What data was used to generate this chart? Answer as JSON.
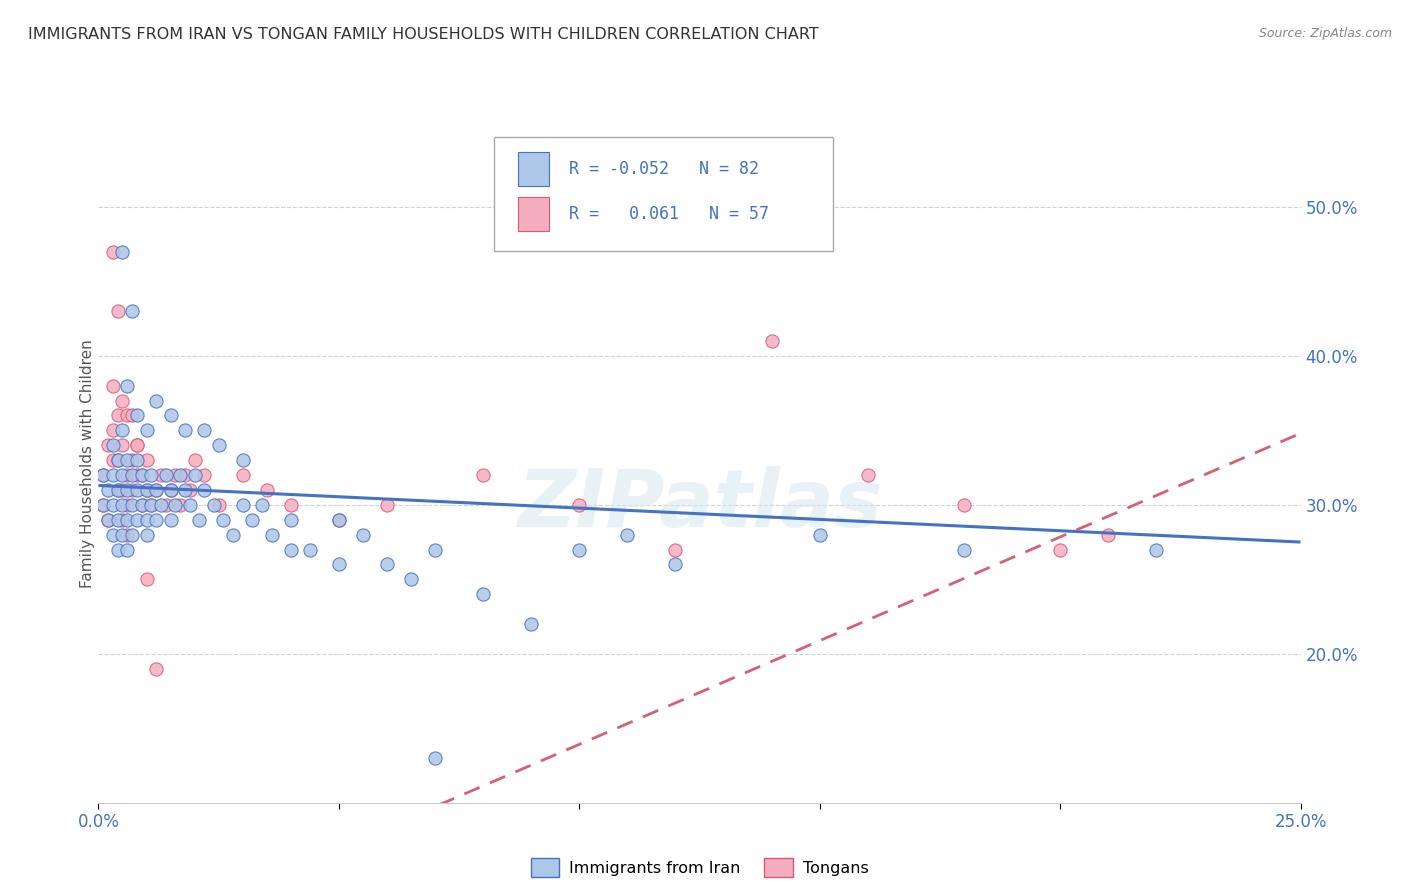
{
  "title": "IMMIGRANTS FROM IRAN VS TONGAN FAMILY HOUSEHOLDS WITH CHILDREN CORRELATION CHART",
  "source": "Source: ZipAtlas.com",
  "ylabel": "Family Households with Children",
  "yticks_labels": [
    "20.0%",
    "30.0%",
    "40.0%",
    "50.0%"
  ],
  "ytick_values": [
    0.2,
    0.3,
    0.4,
    0.5
  ],
  "xtick_left_label": "0.0%",
  "xtick_right_label": "25.0%",
  "legend_label_iran": "Immigrants from Iran",
  "legend_label_tongan": "Tongans",
  "iran_color": "#aec6e8",
  "tongan_color": "#f4aec0",
  "iran_edge_color": "#4472c4",
  "tongan_edge_color": "#e05575",
  "iran_line_color": "#4472c4",
  "tongan_line_color": "#d9606e",
  "background_color": "#ffffff",
  "grid_color": "#cccccc",
  "title_color": "#333333",
  "axis_label_color": "#4472c4",
  "source_color": "#888888",
  "ylabel_color": "#555555",
  "xlim": [
    0.0,
    0.25
  ],
  "ylim": [
    0.1,
    0.555
  ],
  "iran_line_x0": 0.0,
  "iran_line_y0": 0.313,
  "iran_line_x1": 0.25,
  "iran_line_y1": 0.275,
  "tongan_line_x0": 0.0,
  "tongan_line_y0": 0.317,
  "tongan_line_x1": 0.25,
  "tongan_line_y1": 0.348,
  "iran_scatter_x": [
    0.001,
    0.001,
    0.002,
    0.002,
    0.003,
    0.003,
    0.003,
    0.003,
    0.004,
    0.004,
    0.004,
    0.004,
    0.005,
    0.005,
    0.005,
    0.005,
    0.006,
    0.006,
    0.006,
    0.006,
    0.007,
    0.007,
    0.007,
    0.008,
    0.008,
    0.008,
    0.009,
    0.009,
    0.01,
    0.01,
    0.01,
    0.011,
    0.011,
    0.012,
    0.012,
    0.013,
    0.014,
    0.015,
    0.015,
    0.016,
    0.017,
    0.018,
    0.019,
    0.02,
    0.021,
    0.022,
    0.024,
    0.026,
    0.028,
    0.03,
    0.032,
    0.034,
    0.036,
    0.04,
    0.044,
    0.05,
    0.055,
    0.06,
    0.065,
    0.07,
    0.08,
    0.09,
    0.1,
    0.11,
    0.12,
    0.15,
    0.18,
    0.22,
    0.005,
    0.006,
    0.007,
    0.008,
    0.01,
    0.012,
    0.015,
    0.018,
    0.022,
    0.025,
    0.03,
    0.04,
    0.05,
    0.07
  ],
  "iran_scatter_y": [
    0.3,
    0.32,
    0.29,
    0.31,
    0.28,
    0.3,
    0.32,
    0.34,
    0.27,
    0.29,
    0.31,
    0.33,
    0.28,
    0.3,
    0.32,
    0.35,
    0.29,
    0.31,
    0.33,
    0.27,
    0.3,
    0.32,
    0.28,
    0.31,
    0.29,
    0.33,
    0.3,
    0.32,
    0.29,
    0.31,
    0.28,
    0.3,
    0.32,
    0.29,
    0.31,
    0.3,
    0.32,
    0.31,
    0.29,
    0.3,
    0.32,
    0.31,
    0.3,
    0.32,
    0.29,
    0.31,
    0.3,
    0.29,
    0.28,
    0.3,
    0.29,
    0.3,
    0.28,
    0.29,
    0.27,
    0.29,
    0.28,
    0.26,
    0.25,
    0.27,
    0.24,
    0.22,
    0.27,
    0.28,
    0.26,
    0.28,
    0.27,
    0.27,
    0.47,
    0.38,
    0.43,
    0.36,
    0.35,
    0.37,
    0.36,
    0.35,
    0.35,
    0.34,
    0.33,
    0.27,
    0.26,
    0.13
  ],
  "tongan_scatter_x": [
    0.001,
    0.001,
    0.002,
    0.002,
    0.003,
    0.003,
    0.003,
    0.004,
    0.004,
    0.004,
    0.005,
    0.005,
    0.005,
    0.006,
    0.006,
    0.006,
    0.007,
    0.007,
    0.008,
    0.008,
    0.009,
    0.009,
    0.01,
    0.01,
    0.011,
    0.012,
    0.013,
    0.014,
    0.015,
    0.016,
    0.017,
    0.018,
    0.019,
    0.02,
    0.022,
    0.025,
    0.03,
    0.035,
    0.04,
    0.05,
    0.06,
    0.08,
    0.1,
    0.12,
    0.14,
    0.16,
    0.18,
    0.2,
    0.21,
    0.003,
    0.004,
    0.005,
    0.006,
    0.007,
    0.008,
    0.01,
    0.012
  ],
  "tongan_scatter_y": [
    0.32,
    0.3,
    0.34,
    0.29,
    0.33,
    0.35,
    0.38,
    0.31,
    0.33,
    0.36,
    0.29,
    0.31,
    0.34,
    0.32,
    0.3,
    0.28,
    0.33,
    0.31,
    0.32,
    0.34,
    0.3,
    0.32,
    0.31,
    0.33,
    0.3,
    0.31,
    0.32,
    0.3,
    0.31,
    0.32,
    0.3,
    0.32,
    0.31,
    0.33,
    0.32,
    0.3,
    0.32,
    0.31,
    0.3,
    0.29,
    0.3,
    0.32,
    0.3,
    0.27,
    0.41,
    0.32,
    0.3,
    0.27,
    0.28,
    0.47,
    0.43,
    0.37,
    0.36,
    0.36,
    0.34,
    0.25,
    0.19
  ]
}
